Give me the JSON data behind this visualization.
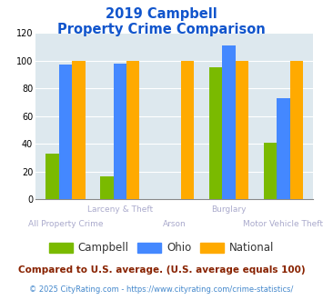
{
  "title_line1": "2019 Campbell",
  "title_line2": "Property Crime Comparison",
  "campbell": [
    33,
    17,
    0,
    95,
    41
  ],
  "ohio": [
    97,
    98,
    0,
    111,
    73
  ],
  "national": [
    100,
    100,
    100,
    100,
    100
  ],
  "campbell_color": "#7aba00",
  "ohio_color": "#4488ff",
  "national_color": "#ffaa00",
  "ylim": [
    0,
    120
  ],
  "yticks": [
    0,
    20,
    40,
    60,
    80,
    100,
    120
  ],
  "plot_bg": "#dde8ee",
  "title_color": "#1155cc",
  "label_color": "#aaaacc",
  "footnote1": "Compared to U.S. average. (U.S. average equals 100)",
  "footnote2": "© 2025 CityRating.com - https://www.cityrating.com/crime-statistics/",
  "footnote1_color": "#882200",
  "footnote2_color": "#4488cc",
  "legend_color": "#333333",
  "top_labels": [
    "",
    "Larceny & Theft",
    "",
    "Burglary",
    ""
  ],
  "bottom_labels": [
    "All Property Crime",
    "",
    "Arson",
    "",
    "Motor Vehicle Theft"
  ]
}
